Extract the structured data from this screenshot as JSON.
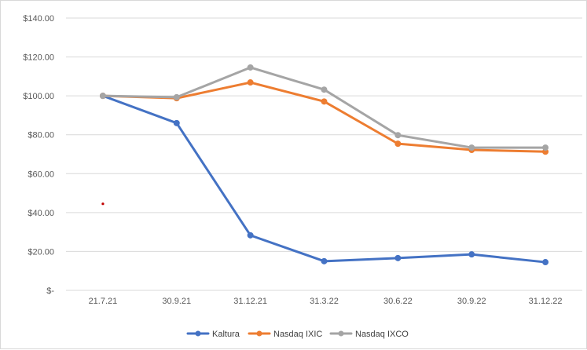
{
  "chart_data": {
    "type": "line",
    "title": "",
    "xlabel": "",
    "ylabel": "",
    "categories": [
      "21.7.21",
      "30.9.21",
      "31.12.21",
      "31.3.22",
      "30.6.22",
      "30.9.22",
      "31.12.22"
    ],
    "ylim": [
      0,
      140
    ],
    "y_ticks": [
      0,
      20,
      40,
      60,
      80,
      100,
      120,
      140
    ],
    "y_tick_labels": [
      "$-",
      "$20.00",
      "$40.00",
      "$60.00",
      "$80.00",
      "$100.00",
      "$120.00",
      "$140.00"
    ],
    "grid": "horizontal",
    "legend_position": "bottom",
    "series": [
      {
        "name": "Kaltura",
        "color": "#4472c4",
        "values": [
          100.0,
          86.0,
          28.3,
          15.0,
          16.6,
          18.5,
          14.5
        ]
      },
      {
        "name": "Nasdaq IXIC",
        "color": "#ed7d31",
        "values": [
          100.0,
          98.8,
          106.9,
          97.1,
          75.4,
          72.2,
          71.3
        ]
      },
      {
        "name": "Nasdaq IXCO",
        "color": "#a5a5a5",
        "values": [
          100.0,
          99.3,
          114.6,
          103.2,
          79.8,
          73.4,
          73.4
        ]
      }
    ],
    "annotations": [
      {
        "type": "stray-marker",
        "color": "#c00000",
        "x_category_index": 0,
        "y": 44.5
      }
    ]
  }
}
